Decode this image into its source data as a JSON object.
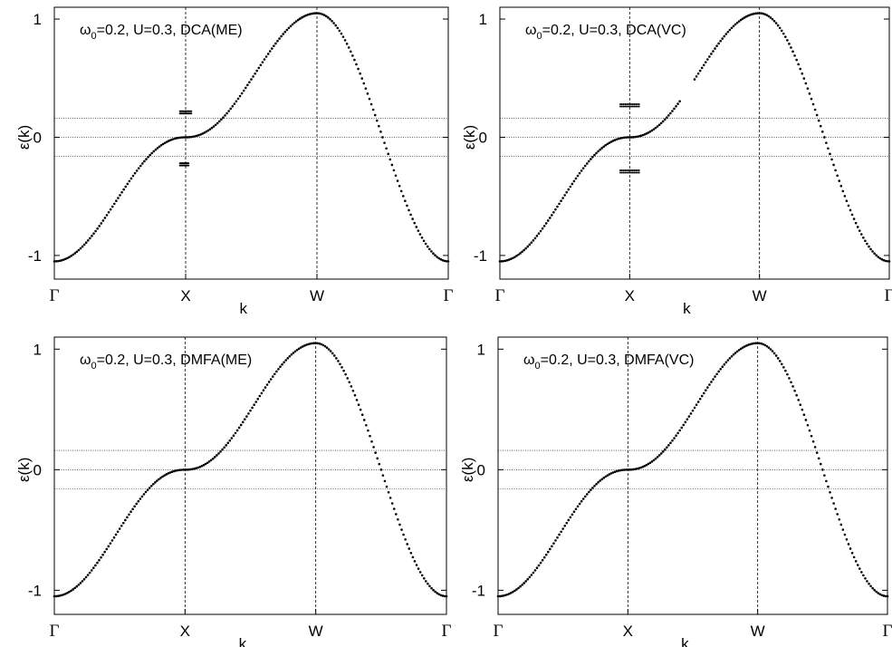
{
  "chart_data": [
    {
      "type": "scatter",
      "title_main": "ω",
      "title_sub": "0",
      "title_rest": "=0.2, U=0.3, DCA(ME)",
      "xlabel": "k",
      "ylabel": "ε(k)",
      "x_tick_labels": [
        "Γ",
        "X",
        "W",
        "Γ"
      ],
      "y_tick_labels": [
        "-1",
        "0",
        "1"
      ],
      "y_ticks": [
        -1,
        0,
        1
      ],
      "ylim": [
        -1.2,
        1.1
      ],
      "hlines": [
        0.16,
        0,
        -0.16
      ],
      "gap_edges": [
        0.1,
        0.44
      ],
      "gap_shift": 0,
      "flat_segments": [
        {
          "x0": -0.12,
          "x1": 0.12,
          "y": 0.22
        },
        {
          "x0": -0.12,
          "x1": 0.06,
          "y": -0.22
        }
      ],
      "grid": false
    },
    {
      "type": "scatter",
      "title_main": "ω",
      "title_sub": "0",
      "title_rest": "=0.2, U=0.3, DCA(VC)",
      "xlabel": "k",
      "ylabel": "ε(k)",
      "x_tick_labels": [
        "Γ",
        "X",
        "W",
        "Γ"
      ],
      "y_tick_labels": [
        "-1",
        "0",
        "1"
      ],
      "y_ticks": [
        -1,
        0,
        1
      ],
      "ylim": [
        -1.2,
        1.1
      ],
      "hlines": [
        0.16,
        0,
        -0.16
      ],
      "gap_edges": [
        0.32,
        0.5
      ],
      "gap_shift": 0.12,
      "flat_segments": [
        {
          "x0": -0.2,
          "x1": 0.2,
          "y": 0.28
        },
        {
          "x0": -0.2,
          "x1": 0.2,
          "y": -0.28
        }
      ],
      "grid": false
    },
    {
      "type": "scatter",
      "title_main": "ω",
      "title_sub": "0",
      "title_rest": "=0.2, U=0.3, DMFA(ME)",
      "xlabel": "k",
      "ylabel": "ε(k)",
      "x_tick_labels": [
        "Γ",
        "X",
        "W",
        "Γ"
      ],
      "y_tick_labels": [
        "-1",
        "0",
        "1"
      ],
      "y_ticks": [
        -1,
        0,
        1
      ],
      "ylim": [
        -1.2,
        1.1
      ],
      "hlines": [
        0.16,
        0,
        -0.16
      ],
      "gap_edges": [],
      "gap_shift": 0,
      "flat_segments": [],
      "grid": false
    },
    {
      "type": "scatter",
      "title_main": "ω",
      "title_sub": "0",
      "title_rest": "=0.2, U=0.3, DMFA(VC)",
      "xlabel": "k",
      "ylabel": "ε(k)",
      "x_tick_labels": [
        "Γ",
        "X",
        "W",
        "Γ"
      ],
      "y_tick_labels": [
        "-1",
        "0",
        "1"
      ],
      "y_ticks": [
        -1,
        0,
        1
      ],
      "ylim": [
        -1.2,
        1.1
      ],
      "hlines": [
        0.16,
        0,
        -0.16
      ],
      "gap_edges": [],
      "gap_shift": 0,
      "flat_segments": [],
      "grid": false
    }
  ]
}
